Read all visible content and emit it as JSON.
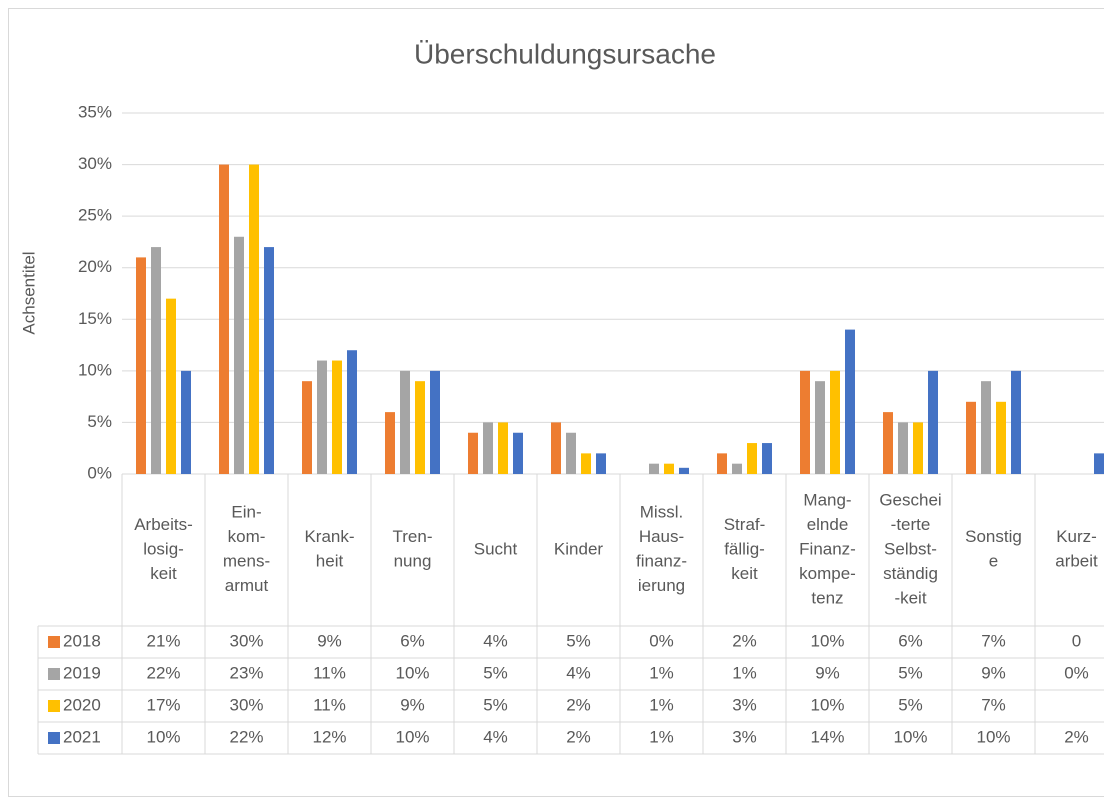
{
  "chart_data": {
    "type": "bar",
    "title": "Überschuldungsursache",
    "y_axis_label": "Achsentitel",
    "categories": [
      [
        "Arbeits-",
        "losig-",
        "keit"
      ],
      [
        "Ein-",
        "kom-",
        "mens-",
        "armut"
      ],
      [
        "Krank-",
        "heit"
      ],
      [
        "Tren-",
        "nung"
      ],
      [
        "Sucht"
      ],
      [
        "Kinder"
      ],
      [
        "Missl.",
        "Haus-",
        "finanz-",
        "ierung"
      ],
      [
        "Straf-",
        "fällig-",
        "keit"
      ],
      [
        "Mang-",
        "elnde",
        "Finanz-",
        "kompe-",
        "tenz"
      ],
      [
        "Geschei",
        "-terte",
        "Selbst-",
        "ständig",
        "-keit"
      ],
      [
        "Sonstig",
        "e"
      ],
      [
        "Kurz-",
        "arbeit"
      ]
    ],
    "series": [
      {
        "name": "2018",
        "color": "#ED7D31",
        "values": [
          21,
          30,
          9,
          6,
          4,
          5,
          0,
          2,
          10,
          6,
          7,
          0
        ],
        "value_labels": [
          "21%",
          "30%",
          "9%",
          "6%",
          "4%",
          "5%",
          "0%",
          "2%",
          "10%",
          "6%",
          "7%",
          "0"
        ]
      },
      {
        "name": "2019",
        "color": "#A5A5A5",
        "values": [
          22,
          23,
          11,
          10,
          5,
          4,
          1,
          1,
          9,
          5,
          9,
          0
        ],
        "value_labels": [
          "22%",
          "23%",
          "11%",
          "10%",
          "5%",
          "4%",
          "1%",
          "1%",
          "9%",
          "5%",
          "9%",
          "0%"
        ]
      },
      {
        "name": "2020",
        "color": "#FFC000",
        "values": [
          17,
          30,
          11,
          9,
          5,
          2,
          1,
          3,
          10,
          5,
          7,
          null
        ],
        "value_labels": [
          "17%",
          "30%",
          "11%",
          "9%",
          "5%",
          "2%",
          "1%",
          "3%",
          "10%",
          "5%",
          "7%",
          null
        ]
      },
      {
        "name": "2021",
        "color": "#4472C4",
        "values": [
          10,
          22,
          12,
          10,
          4,
          2,
          0.6,
          3,
          14,
          10,
          10,
          2
        ],
        "value_labels": [
          "10%",
          "22%",
          "12%",
          "10%",
          "4%",
          "2%",
          "1%",
          "3%",
          "14%",
          "10%",
          "10%",
          "2%"
        ]
      }
    ],
    "ylim": [
      0,
      35
    ],
    "yticks": [
      {
        "value": 0,
        "label": "0%"
      },
      {
        "value": 5,
        "label": "5%"
      },
      {
        "value": 10,
        "label": "10%"
      },
      {
        "value": 15,
        "label": "15%"
      },
      {
        "value": 20,
        "label": "20%"
      },
      {
        "value": 25,
        "label": "25%"
      },
      {
        "value": 30,
        "label": "30%"
      },
      {
        "value": 35,
        "label": "35%"
      }
    ],
    "grid": true
  }
}
